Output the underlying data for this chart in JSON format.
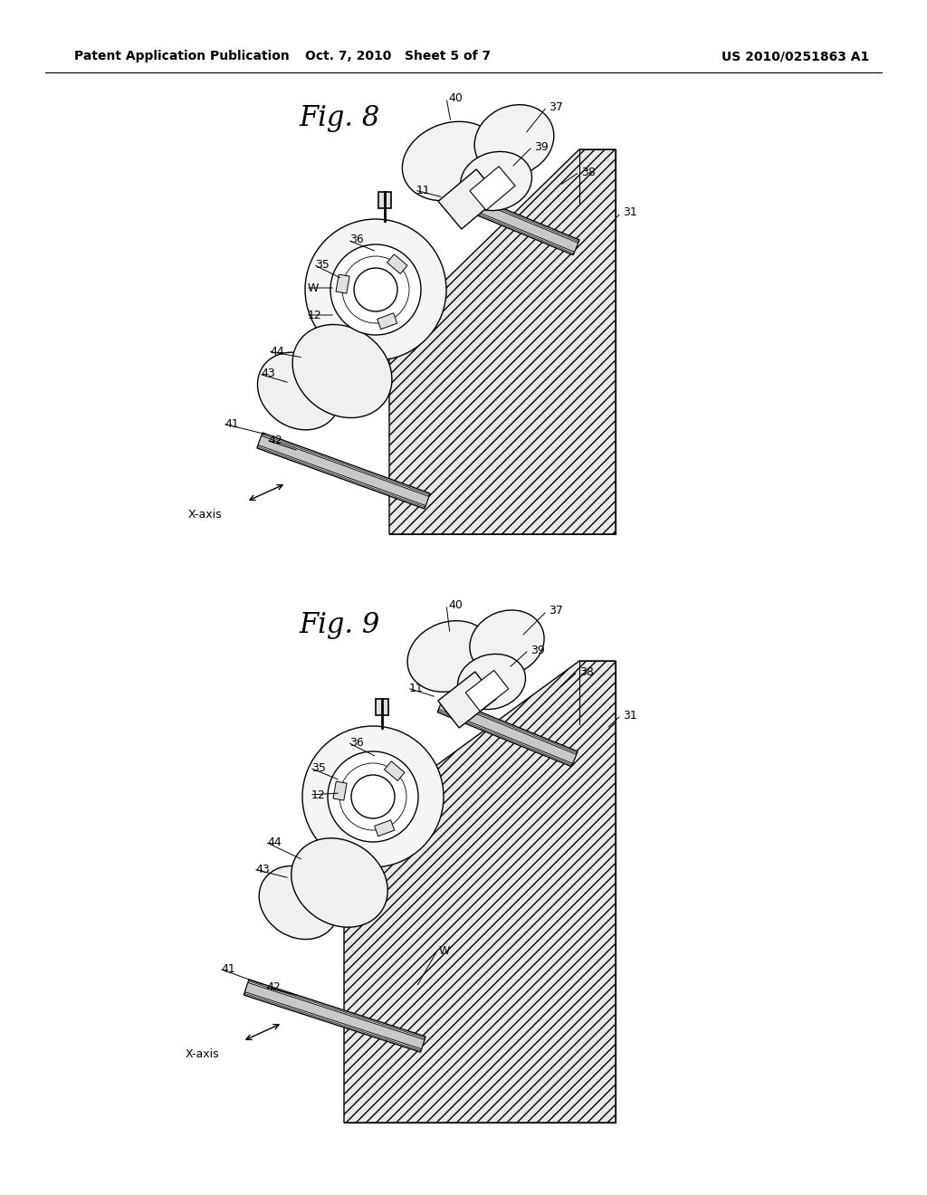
{
  "bg": "#ffffff",
  "lc": "#000000",
  "header_left": "Patent Application Publication",
  "header_mid": "Oct. 7, 2010   Sheet 5 of 7",
  "header_right": "US 2010/0251863 A1",
  "fig8_title": "Fig. 8",
  "fig9_title": "Fig. 9",
  "hatch_fc": "#e8e8e8",
  "component_fc": "#f0f0f0",
  "white": "#ffffff"
}
